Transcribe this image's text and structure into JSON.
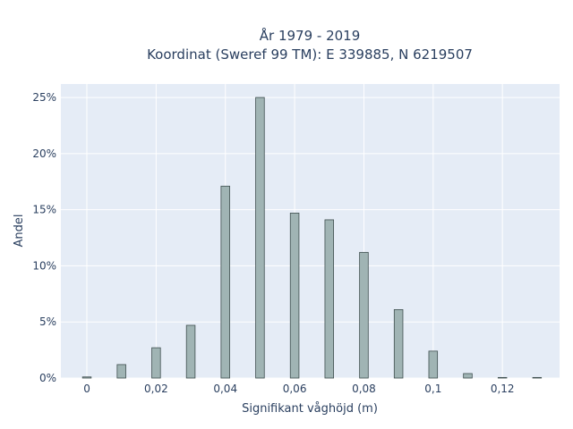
{
  "chart_data": {
    "type": "bar",
    "title_lines": [
      "År 1979 - 2019",
      "Koordinat (Sweref 99 TM): E 339885, N 6219507"
    ],
    "xlabel": "Signifikant våghöjd (m)",
    "ylabel": "Andel",
    "x": [
      0,
      0.01,
      0.02,
      0.03,
      0.04,
      0.05,
      0.06,
      0.07,
      0.08,
      0.09,
      0.1,
      0.11,
      0.12,
      0.13
    ],
    "values": [
      0.1,
      1.2,
      2.7,
      4.7,
      17.1,
      25.0,
      14.7,
      14.1,
      11.2,
      6.1,
      2.4,
      0.4,
      0.05,
      0.05
    ],
    "xlim": [
      -0.0075,
      0.1365
    ],
    "ylim": [
      0,
      26.2
    ],
    "bar_width": 0.0025,
    "x_ticks": [
      0,
      0.02,
      0.04,
      0.06,
      0.08,
      0.1,
      0.12
    ],
    "x_tick_labels": [
      "0",
      "0,02",
      "0,04",
      "0,06",
      "0,08",
      "0,1",
      "0,12"
    ],
    "y_ticks": [
      0,
      5,
      10,
      15,
      20,
      25
    ],
    "y_tick_labels": [
      "0%",
      "5%",
      "10%",
      "15%",
      "20%",
      "25%"
    ],
    "grid": true,
    "colors": {
      "plot_bg": "#e5ecf6",
      "grid": "#ffffff",
      "bar_fill": "#a0b4b4",
      "bar_stroke": "#3f4f4f"
    }
  }
}
